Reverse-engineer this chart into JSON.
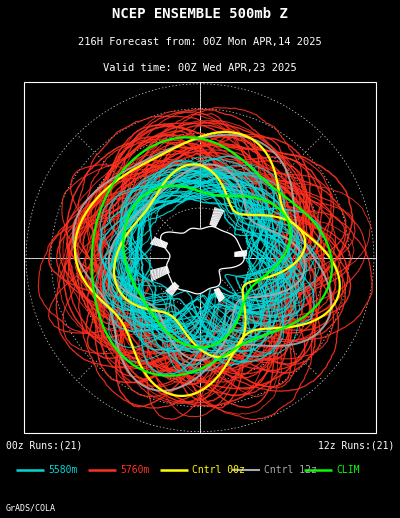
{
  "title_line1": "NCEP ENSEMBLE 500mb Z",
  "title_line2": "216H Forecast from: 00Z Mon APR,14 2025",
  "title_line3": "Valid time: 00Z Wed APR,23 2025",
  "label_00z": "00z Runs:(21)",
  "label_12z": "12z Runs:(21)",
  "legend_items": [
    {
      "label": "5580m",
      "color": "#00d8d8",
      "lw": 1.8
    },
    {
      "label": "5760m",
      "color": "#ff3020",
      "lw": 1.8
    },
    {
      "label": "Cntrl 00z",
      "color": "#ffff00",
      "lw": 1.8
    },
    {
      "label": "Cntrl 12z",
      "color": "#aaaaaa",
      "lw": 1.5
    },
    {
      "label": "CLIM",
      "color": "#00ff00",
      "lw": 1.8
    }
  ],
  "footer": "GrADS/COLA",
  "background_color": "#000000",
  "text_color": "#ffffff",
  "cyan_color": "#00d8d8",
  "red_color": "#ff3020",
  "yellow_color": "#ffff00",
  "gray_color": "#aaaaaa",
  "green_color": "#00ff00",
  "n_cyan": 42,
  "n_red": 42,
  "seed_cyan": 42,
  "seed_red": 137
}
